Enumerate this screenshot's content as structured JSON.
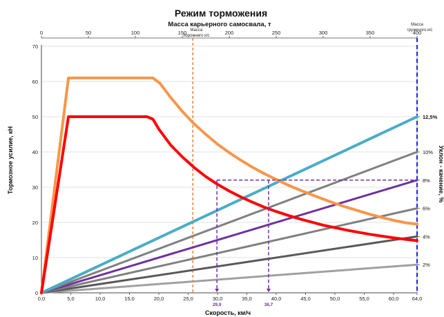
{
  "chart_data": {
    "type": "line",
    "title": "Режим торможения",
    "subtitle": "Масса карьерного самосвала, т",
    "xlabel": "Скорость, км/ч",
    "ylabel": "Тормозное усилие, кН",
    "y2label": "Уклон - качение, %",
    "xlim": [
      0,
      64
    ],
    "ylim": [
      0,
      70
    ],
    "x_ticks": [
      "0,0",
      "5,0",
      "10,0",
      "15,0",
      "20,0",
      "25,0",
      "30,0",
      "35,0",
      "40,0",
      "45,0",
      "50,0",
      "55,0",
      "60,0",
      "64,0"
    ],
    "x_tick_values": [
      0,
      5,
      10,
      15,
      20,
      25,
      30,
      35,
      40,
      45,
      50,
      55,
      60,
      64
    ],
    "y_ticks": [
      0,
      10,
      20,
      30,
      40,
      50,
      60,
      70
    ],
    "top_axis": {
      "range": [
        0,
        400
      ],
      "ticks": [
        0,
        50,
        100,
        150,
        200,
        250,
        300,
        350,
        400
      ]
    },
    "series": [
      {
        "color": "#f7964a",
        "width": 4,
        "points": [
          [
            0,
            0
          ],
          [
            4.6,
            61
          ],
          [
            19,
            61
          ],
          [
            20.2,
            59.5
          ],
          [
            22,
            55.5
          ],
          [
            24,
            51.5
          ],
          [
            26,
            48
          ],
          [
            28,
            45
          ],
          [
            30,
            42.2
          ],
          [
            32,
            39.8
          ],
          [
            34,
            37.6
          ],
          [
            36,
            35.6
          ],
          [
            38,
            33.8
          ],
          [
            40,
            32.2
          ],
          [
            42,
            30.6
          ],
          [
            44,
            29.2
          ],
          [
            46,
            27.9
          ],
          [
            48,
            26.6
          ],
          [
            50,
            25.4
          ],
          [
            52,
            24.3
          ],
          [
            54,
            23.3
          ],
          [
            56,
            22.3
          ],
          [
            58,
            21.4
          ],
          [
            60,
            20.6
          ],
          [
            62,
            19.9
          ],
          [
            64,
            19.5
          ]
        ]
      },
      {
        "color": "#ff0000",
        "width": 4,
        "points": [
          [
            0,
            0
          ],
          [
            4.6,
            50
          ],
          [
            18,
            50
          ],
          [
            19,
            49.3
          ],
          [
            20,
            46.5
          ],
          [
            22,
            42
          ],
          [
            24,
            38.6
          ],
          [
            26,
            35.6
          ],
          [
            28,
            33
          ],
          [
            30,
            30.8
          ],
          [
            32,
            28.9
          ],
          [
            34,
            27.2
          ],
          [
            36,
            25.7
          ],
          [
            38,
            24.3
          ],
          [
            40,
            23.1
          ],
          [
            42,
            22
          ],
          [
            44,
            21
          ],
          [
            46,
            20.1
          ],
          [
            48,
            19.2
          ],
          [
            50,
            18.5
          ],
          [
            52,
            17.8
          ],
          [
            54,
            17.2
          ],
          [
            56,
            16.6
          ],
          [
            58,
            16.1
          ],
          [
            60,
            15.6
          ],
          [
            62,
            15.2
          ],
          [
            64,
            14.8
          ]
        ]
      },
      {
        "color": "#4bacc6",
        "width": 4,
        "points": [
          [
            0,
            0
          ],
          [
            64,
            50
          ]
        ]
      },
      {
        "color": "#808080",
        "width": 3,
        "points": [
          [
            0,
            0
          ],
          [
            64,
            40
          ]
        ]
      },
      {
        "color": "#7030a0",
        "width": 3,
        "points": [
          [
            0,
            0
          ],
          [
            64,
            32
          ]
        ]
      },
      {
        "color": "#808080",
        "width": 3,
        "points": [
          [
            0,
            0
          ],
          [
            64,
            24
          ]
        ]
      },
      {
        "color": "#595959",
        "width": 3,
        "points": [
          [
            0,
            0
          ],
          [
            64,
            16
          ]
        ]
      },
      {
        "color": "#a0a0a0",
        "width": 3,
        "points": [
          [
            0,
            0
          ],
          [
            64,
            8
          ]
        ]
      }
    ],
    "slope_labels": [
      {
        "text": "12,5%",
        "y": 50,
        "bold": true
      },
      {
        "text": "10%",
        "y": 40,
        "bold": false
      },
      {
        "text": "8%",
        "y": 32,
        "bold": false
      },
      {
        "text": "6%",
        "y": 24,
        "bold": false
      },
      {
        "text": "4%",
        "y": 16,
        "bold": false
      },
      {
        "text": "2%",
        "y": 8,
        "bold": false
      }
    ],
    "vertical_lines": [
      {
        "x": 25.8,
        "color": "#ed7d31",
        "label1": "Масса",
        "label2": "порожнего к/с"
      },
      {
        "x": 64,
        "color": "#1f1fff",
        "label1": "Масса",
        "label2": "груженого к/с"
      }
    ],
    "markers": {
      "y": 32,
      "color": "#7030a0",
      "x_values": [
        29.9,
        38.7
      ],
      "labels": [
        "29,9",
        "38,7"
      ]
    }
  }
}
